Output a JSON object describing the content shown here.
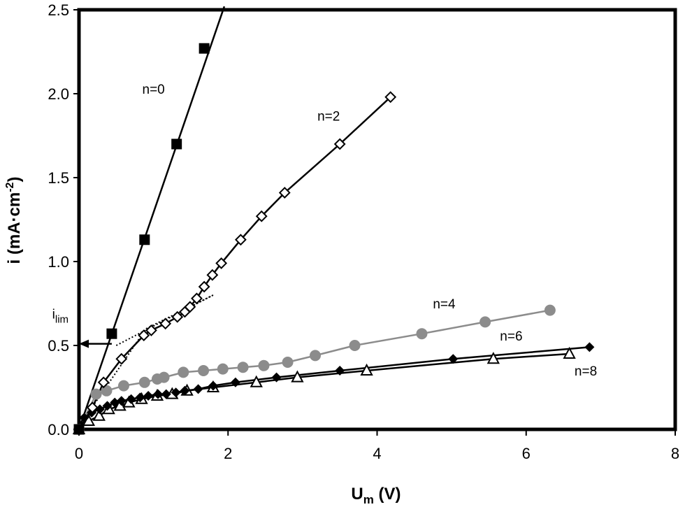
{
  "chart_data": {
    "type": "scatter",
    "xlabel": {
      "main": "U",
      "sub": "m",
      "rest": " (V)"
    },
    "ylabel": {
      "main": "i (mA·cm",
      "sup": "-2",
      "rest": ")"
    },
    "xlim": [
      0,
      8
    ],
    "ylim": [
      0,
      2.5
    ],
    "xticks": [
      0,
      2,
      4,
      6,
      8
    ],
    "yticks": [
      0.0,
      0.5,
      1.0,
      1.5,
      2.0,
      2.5
    ],
    "xtick_labels": [
      "0",
      "2",
      "4",
      "6",
      "8"
    ],
    "ytick_labels": [
      "0.0",
      "0.5",
      "1.0",
      "1.5",
      "2.0",
      "2.5"
    ],
    "grid": false,
    "series": [
      {
        "name": "n=0",
        "marker": "filled-square",
        "color": "#000000",
        "x": [
          0,
          0.44,
          0.88,
          1.31,
          1.68
        ],
        "y": [
          0.0,
          0.57,
          1.13,
          1.7,
          2.27
        ],
        "line_x": [
          0,
          1.95
        ],
        "line_y": [
          0.0,
          2.52
        ]
      },
      {
        "name": "n=2",
        "marker": "open-diamond",
        "color": "#000000",
        "x": [
          0,
          0.18,
          0.33,
          0.57,
          0.87,
          0.97,
          1.16,
          1.32,
          1.42,
          1.49,
          1.58,
          1.68,
          1.79,
          1.91,
          2.17,
          2.45,
          2.76,
          3.5,
          4.18
        ],
        "y": [
          0.0,
          0.13,
          0.28,
          0.42,
          0.56,
          0.59,
          0.63,
          0.67,
          0.7,
          0.73,
          0.78,
          0.85,
          0.92,
          0.99,
          1.13,
          1.27,
          1.41,
          1.7,
          1.98
        ]
      },
      {
        "name": "n=4",
        "marker": "filled-circle",
        "color": "#8c8c8c",
        "x": [
          0,
          0.23,
          0.37,
          0.6,
          0.88,
          1.05,
          1.14,
          1.4,
          1.67,
          1.93,
          2.2,
          2.48,
          2.8,
          3.17,
          3.7,
          4.6,
          5.45,
          6.32
        ],
        "y": [
          0.0,
          0.21,
          0.23,
          0.26,
          0.28,
          0.3,
          0.31,
          0.34,
          0.35,
          0.36,
          0.37,
          0.38,
          0.4,
          0.44,
          0.5,
          0.57,
          0.64,
          0.71
        ]
      },
      {
        "name": "n=6",
        "marker": "filled-diamond",
        "color": "#000000",
        "x": [
          0,
          0.07,
          0.17,
          0.28,
          0.38,
          0.48,
          0.57,
          0.7,
          0.82,
          0.93,
          1.06,
          1.17,
          1.3,
          1.42,
          1.6,
          1.8,
          2.1,
          2.65,
          3.5,
          5.02,
          6.85
        ],
        "y": [
          0.0,
          0.07,
          0.1,
          0.12,
          0.14,
          0.16,
          0.17,
          0.18,
          0.19,
          0.2,
          0.21,
          0.21,
          0.22,
          0.23,
          0.24,
          0.26,
          0.28,
          0.31,
          0.35,
          0.42,
          0.49
        ]
      },
      {
        "name": "n=8",
        "marker": "open-triangle",
        "color": "#000000",
        "x": [
          0,
          0.13,
          0.27,
          0.4,
          0.55,
          0.67,
          0.84,
          1.05,
          1.25,
          1.45,
          1.8,
          2.38,
          2.93,
          3.86,
          5.56,
          6.58
        ],
        "y": [
          0.0,
          0.05,
          0.08,
          0.12,
          0.14,
          0.16,
          0.18,
          0.2,
          0.21,
          0.23,
          0.25,
          0.28,
          0.31,
          0.35,
          0.42,
          0.45
        ]
      }
    ],
    "fit_lines": [
      {
        "x": [
          0.05,
          0.9
        ],
        "y": [
          0.05,
          0.6
        ]
      },
      {
        "x": [
          0.5,
          1.8
        ],
        "y": [
          0.5,
          0.8
        ]
      },
      {
        "x": [
          0.9,
          1.8
        ],
        "y": [
          0.6,
          0.8
        ]
      }
    ],
    "series_labels": [
      {
        "text": "n=0",
        "x": 1.0,
        "y": 2.0
      },
      {
        "text": "n=2",
        "x": 3.35,
        "y": 1.84
      },
      {
        "text": "n=4",
        "x": 4.9,
        "y": 0.72
      },
      {
        "text": "n=6",
        "x": 5.8,
        "y": 0.53
      },
      {
        "text": "n=8",
        "x": 6.8,
        "y": 0.32
      }
    ],
    "annotation": {
      "text_main": "i",
      "text_sub": "lim",
      "arrow_from_x": 0.44,
      "arrow_to_x": 0.0,
      "arrow_y": 0.51,
      "label_x": -0.25,
      "label_y": 0.66
    }
  }
}
